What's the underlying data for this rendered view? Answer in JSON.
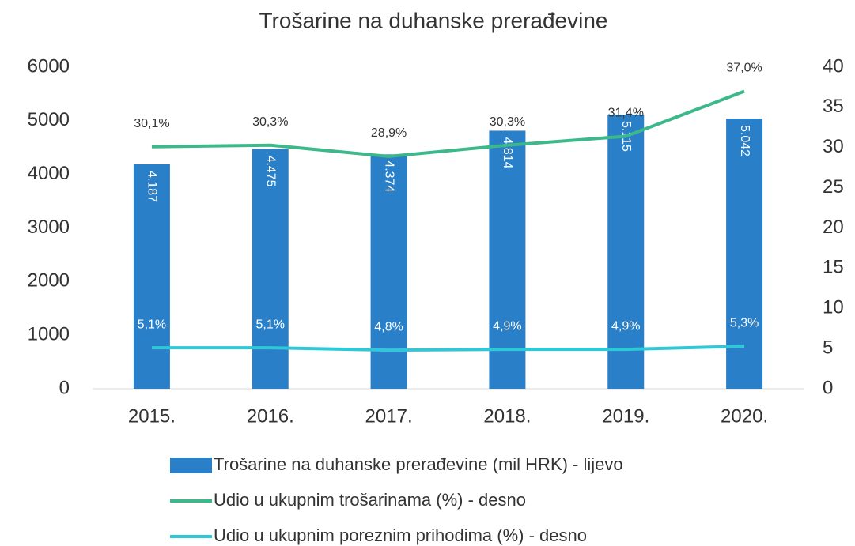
{
  "chart_data": {
    "type": "bar",
    "title": "Trošarine na duhanske prerađevine",
    "categories": [
      "2015.",
      "2016.",
      "2017.",
      "2018.",
      "2019.",
      "2020."
    ],
    "series": [
      {
        "name": "Trošarine na duhanske prerađevine (mil HRK) - lijevo",
        "type": "bar",
        "color": "#2a80c8",
        "values": [
          4187,
          4475,
          4374,
          4814,
          5115,
          5042
        ],
        "value_labels": [
          "4.187",
          "4.475",
          "4.374",
          "4.814",
          "5.115",
          "5.042"
        ]
      },
      {
        "name": "Udio u ukupnim trošarinama (%) - desno",
        "type": "line",
        "axis": "y2",
        "color": "#3cb88a",
        "values": [
          30.1,
          30.3,
          28.9,
          30.3,
          31.4,
          37.0
        ],
        "value_labels": [
          "30,1%",
          "30,3%",
          "28,9%",
          "30,3%",
          "31,4%",
          "37,0%"
        ]
      },
      {
        "name": "Udio u ukupnim poreznim prihodima (%) - desno",
        "type": "line",
        "axis": "y2",
        "color": "#2ec8d6",
        "values": [
          5.1,
          5.1,
          4.8,
          4.9,
          4.9,
          5.3
        ],
        "value_labels": [
          "5,1%",
          "5,1%",
          "4,8%",
          "4,9%",
          "4,9%",
          "5,3%"
        ]
      }
    ],
    "ylim": [
      0,
      6000
    ],
    "yticks": [
      0,
      1000,
      2000,
      3000,
      4000,
      5000,
      6000
    ],
    "y2lim": [
      0,
      40
    ],
    "y2ticks": [
      0,
      5,
      10,
      15,
      20,
      25,
      30,
      35,
      40
    ],
    "legend": "bottom"
  }
}
